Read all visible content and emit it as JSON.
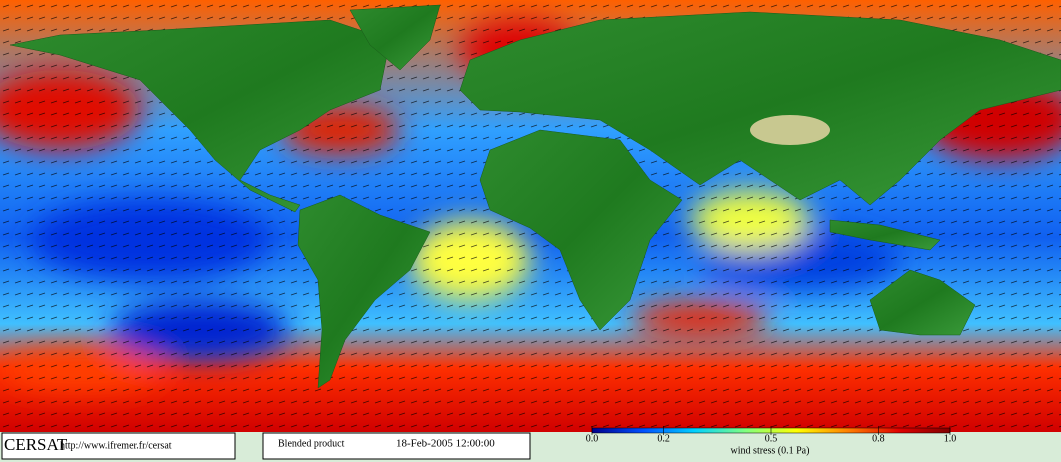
{
  "footer": {
    "logo": "CERSAT",
    "url": "http://www.ifremer.fr/cersat",
    "product": "Blended product",
    "date": "18-Feb-2005 12:00:00"
  },
  "colorbar": {
    "label": "wind stress (0.1 Pa)",
    "lim": [
      0,
      1
    ],
    "ticks": [
      {
        "value": 0,
        "label": "0.0"
      },
      0.2,
      0.5,
      0.8,
      {
        "value": 1,
        "label": "1.0"
      }
    ],
    "colors": [
      "#00008b",
      "#0050ff",
      "#00d0ff",
      "#80ff80",
      "#ffff00",
      "#ff8000",
      "#e00000",
      "#800000"
    ]
  }
}
